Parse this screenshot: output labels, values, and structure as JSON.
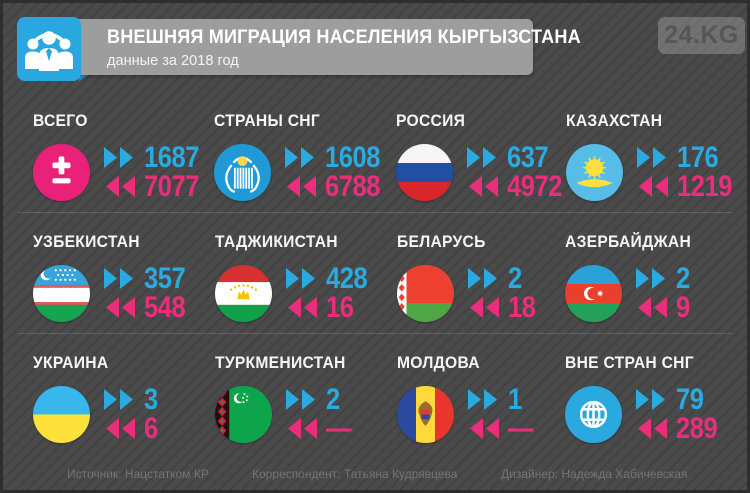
{
  "header": {
    "title": "ВНЕШНЯЯ МИГРАЦИЯ НАСЕЛЕНИЯ КЫРГЫЗСТАНА",
    "subtitle": "данные за 2018 год",
    "logo": "24.KG",
    "icon": "migration-people-icon"
  },
  "colors": {
    "background": "#4a4a4a",
    "banner": "#9d9d9d",
    "accent_blue": "#29a8e0",
    "inflow_blue": "#29abe2",
    "outflow_pink": "#ea2e7c"
  },
  "items": [
    {
      "label": "ВСЕГО",
      "icon": "plus-minus-icon",
      "inflow": "1687",
      "outflow": "7077"
    },
    {
      "label": "СТРАНЫ СНГ",
      "icon": "cis-emblem-icon",
      "inflow": "1608",
      "outflow": "6788"
    },
    {
      "label": "РОССИЯ",
      "icon": "flag-russia-icon",
      "inflow": "637",
      "outflow": "4972"
    },
    {
      "label": "КАЗАХСТАН",
      "icon": "flag-kazakhstan-icon",
      "inflow": "176",
      "outflow": "1219"
    },
    {
      "label": "УЗБЕКИСТАН",
      "icon": "flag-uzbekistan-icon",
      "inflow": "357",
      "outflow": "548"
    },
    {
      "label": "ТАДЖИКИСТАН",
      "icon": "flag-tajikistan-icon",
      "inflow": "428",
      "outflow": "16"
    },
    {
      "label": "БЕЛАРУСЬ",
      "icon": "flag-belarus-icon",
      "inflow": "2",
      "outflow": "18"
    },
    {
      "label": "АЗЕРБАЙДЖАН",
      "icon": "flag-azerbaijan-icon",
      "inflow": "2",
      "outflow": "9"
    },
    {
      "label": "УКРАИНА",
      "icon": "flag-ukraine-icon",
      "inflow": "3",
      "outflow": "6"
    },
    {
      "label": "ТУРКМЕНИСТАН",
      "icon": "flag-turkmenistan-icon",
      "inflow": "2",
      "outflow": "—"
    },
    {
      "label": "МОЛДОВА",
      "icon": "flag-moldova-icon",
      "inflow": "1",
      "outflow": "—"
    },
    {
      "label": "ВНЕ СТРАН СНГ",
      "icon": "globe-icon",
      "inflow": "79",
      "outflow": "289"
    }
  ],
  "footer": {
    "source": "Источник: Нацстатком КР",
    "correspondent": "Корреспондент: Татьяна Кудрявцева",
    "designer": "Дизайнер: Надежда Хабичевская"
  },
  "chart_data": {
    "type": "table",
    "title": "ВНЕШНЯЯ МИГРАЦИЯ НАСЕЛЕНИЯ КЫРГЫЗСТАНА",
    "subtitle": "данные за 2018 год",
    "categories": [
      "ВСЕГО",
      "СТРАНЫ СНГ",
      "РОССИЯ",
      "КАЗАХСТАН",
      "УЗБЕКИСТАН",
      "ТАДЖИКИСТАН",
      "БЕЛАРУСЬ",
      "АЗЕРБАЙДЖАН",
      "УКРАИНА",
      "ТУРКМЕНИСТАН",
      "МОЛДОВА",
      "ВНЕ СТРАН СНГ"
    ],
    "series": [
      {
        "name": "прибыло",
        "values": [
          1687,
          1608,
          637,
          176,
          357,
          428,
          2,
          2,
          3,
          2,
          1,
          79
        ]
      },
      {
        "name": "выбыло",
        "values": [
          7077,
          6788,
          4972,
          1219,
          548,
          16,
          18,
          9,
          6,
          null,
          null,
          289
        ]
      }
    ],
    "legend_position": "inline",
    "grid": false
  }
}
